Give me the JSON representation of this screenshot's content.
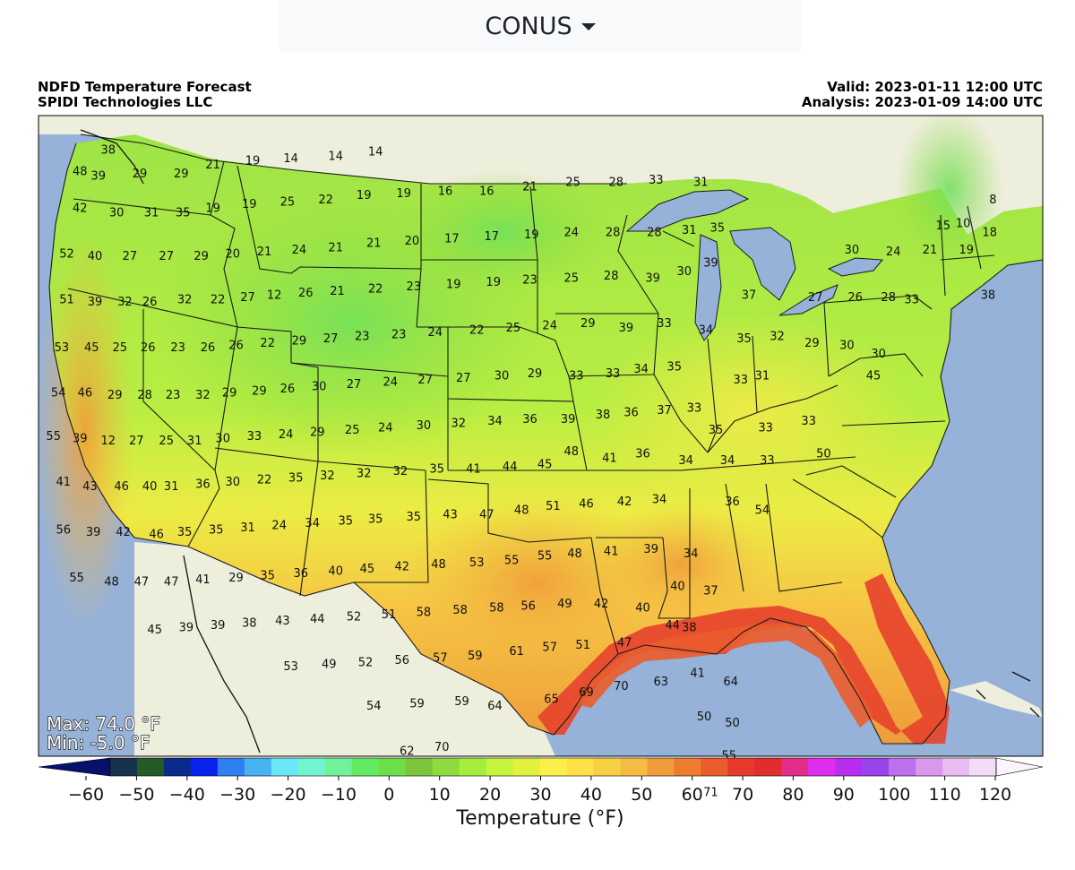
{
  "region_selector": {
    "label": "CONUS"
  },
  "header": {
    "title": "NDFD Temperature Forecast",
    "subtitle": "SPIDI Technologies LLC",
    "valid": "Valid: 2023-01-11 12:00 UTC",
    "analysis": "Analysis: 2023-01-09 14:00 UTC"
  },
  "stats": {
    "max": "Max: 74.0 °F",
    "min": "Min: -5.0 °F"
  },
  "colorbar": {
    "title": "Temperature (°F)",
    "ticks": [
      "−60",
      "−50",
      "−40",
      "−30",
      "−20",
      "−10",
      "0",
      "10",
      "20",
      "30",
      "40",
      "50",
      "60",
      "70",
      "80",
      "90",
      "100",
      "110",
      "120"
    ],
    "colors": [
      "#08106a",
      "#17324f",
      "#235a25",
      "#0c2a8c",
      "#0a22ee",
      "#2e7ff0",
      "#48b2f2",
      "#6ae7f5",
      "#72f5cf",
      "#72f09a",
      "#62ea62",
      "#6cde4a",
      "#7cc43c",
      "#8fda3e",
      "#a6ee3e",
      "#c4f43e",
      "#e0f23e",
      "#fbf04a",
      "#fce248",
      "#f8d044",
      "#f4bc42",
      "#f09c3a",
      "#ec7c30",
      "#ea5c2c",
      "#e63a2a",
      "#e22c2e",
      "#e02e8a",
      "#de2ef0",
      "#b82ef0",
      "#9a44ec",
      "#bc70ec",
      "#d898ec",
      "#e8bcf0",
      "#f4dcf6",
      "#fbf5fb"
    ]
  },
  "map_colors": {
    "ocean": "#97b2d8",
    "land": "#eeeedc",
    "lake": "#97b2d8"
  },
  "temperatures": [
    {
      "v": "38",
      "lon": -122.3,
      "lat": 48.9
    },
    {
      "v": "48",
      "lon": -124.0,
      "lat": 47.9
    },
    {
      "v": "39",
      "lon": -122.9,
      "lat": 47.7
    },
    {
      "v": "29",
      "lon": -120.4,
      "lat": 47.8
    },
    {
      "v": "29",
      "lon": -117.9,
      "lat": 47.8
    },
    {
      "v": "21",
      "lon": -116.0,
      "lat": 48.2
    },
    {
      "v": "19",
      "lon": -113.6,
      "lat": 48.4
    },
    {
      "v": "14",
      "lon": -111.3,
      "lat": 48.5
    },
    {
      "v": "14",
      "lon": -108.6,
      "lat": 48.6
    },
    {
      "v": "14",
      "lon": -106.2,
      "lat": 48.8
    },
    {
      "v": "42",
      "lon": -124.0,
      "lat": 46.2
    },
    {
      "v": "30",
      "lon": -121.8,
      "lat": 46.0
    },
    {
      "v": "31",
      "lon": -119.7,
      "lat": 46.0
    },
    {
      "v": "35",
      "lon": -117.8,
      "lat": 46.0
    },
    {
      "v": "19",
      "lon": -116.0,
      "lat": 46.2
    },
    {
      "v": "19",
      "lon": -113.8,
      "lat": 46.4
    },
    {
      "v": "25",
      "lon": -111.5,
      "lat": 46.5
    },
    {
      "v": "22",
      "lon": -109.2,
      "lat": 46.6
    },
    {
      "v": "19",
      "lon": -106.9,
      "lat": 46.8
    },
    {
      "v": "19",
      "lon": -104.5,
      "lat": 46.9
    },
    {
      "v": "16",
      "lon": -102.0,
      "lat": 47.0
    },
    {
      "v": "16",
      "lon": -99.5,
      "lat": 47.0
    },
    {
      "v": "21",
      "lon": -96.9,
      "lat": 47.2
    },
    {
      "v": "25",
      "lon": -94.3,
      "lat": 47.4
    },
    {
      "v": "28",
      "lon": -91.7,
      "lat": 47.4
    },
    {
      "v": "33",
      "lon": -89.3,
      "lat": 47.5
    },
    {
      "v": "31",
      "lon": -86.6,
      "lat": 47.4
    },
    {
      "v": "52",
      "lon": -124.8,
      "lat": 44.1
    },
    {
      "v": "40",
      "lon": -123.1,
      "lat": 44.0
    },
    {
      "v": "27",
      "lon": -121.0,
      "lat": 44.0
    },
    {
      "v": "27",
      "lon": -118.8,
      "lat": 44.0
    },
    {
      "v": "29",
      "lon": -116.7,
      "lat": 44.0
    },
    {
      "v": "20",
      "lon": -114.8,
      "lat": 44.1
    },
    {
      "v": "21",
      "lon": -112.9,
      "lat": 44.2
    },
    {
      "v": "24",
      "lon": -110.8,
      "lat": 44.3
    },
    {
      "v": "21",
      "lon": -108.6,
      "lat": 44.4
    },
    {
      "v": "21",
      "lon": -106.3,
      "lat": 44.6
    },
    {
      "v": "20",
      "lon": -104.0,
      "lat": 44.7
    },
    {
      "v": "17",
      "lon": -101.6,
      "lat": 44.8
    },
    {
      "v": "17",
      "lon": -99.2,
      "lat": 44.9
    },
    {
      "v": "19",
      "lon": -96.8,
      "lat": 45.0
    },
    {
      "v": "24",
      "lon": -94.4,
      "lat": 45.1
    },
    {
      "v": "28",
      "lon": -91.9,
      "lat": 45.1
    },
    {
      "v": "28",
      "lon": -89.4,
      "lat": 45.1
    },
    {
      "v": "31",
      "lon": -87.3,
      "lat": 45.2
    },
    {
      "v": "35",
      "lon": -85.6,
      "lat": 45.3
    },
    {
      "v": "30",
      "lon": -77.5,
      "lat": 44.3
    },
    {
      "v": "24",
      "lon": -75.0,
      "lat": 44.2
    },
    {
      "v": "21",
      "lon": -72.8,
      "lat": 44.3
    },
    {
      "v": "10",
      "lon": -70.8,
      "lat": 45.5
    },
    {
      "v": "15",
      "lon": -72.0,
      "lat": 45.4
    },
    {
      "v": "8",
      "lon": -69.0,
      "lat": 46.6
    },
    {
      "v": "19",
      "lon": -70.6,
      "lat": 44.3
    },
    {
      "v": "18",
      "lon": -69.2,
      "lat": 45.1
    },
    {
      "v": "38",
      "lon": -69.3,
      "lat": 42.2
    },
    {
      "v": "51",
      "lon": -124.8,
      "lat": 42.0
    },
    {
      "v": "39",
      "lon": -123.1,
      "lat": 41.9
    },
    {
      "v": "32",
      "lon": -121.3,
      "lat": 41.9
    },
    {
      "v": "26",
      "lon": -119.8,
      "lat": 41.9
    },
    {
      "v": "32",
      "lon": -117.7,
      "lat": 42.0
    },
    {
      "v": "22",
      "lon": -115.7,
      "lat": 42.0
    },
    {
      "v": "27",
      "lon": -113.9,
      "lat": 42.1
    },
    {
      "v": "12",
      "lon": -112.3,
      "lat": 42.2
    },
    {
      "v": "26",
      "lon": -110.4,
      "lat": 42.3
    },
    {
      "v": "21",
      "lon": -108.5,
      "lat": 42.4
    },
    {
      "v": "22",
      "lon": -106.2,
      "lat": 42.5
    },
    {
      "v": "23",
      "lon": -103.9,
      "lat": 42.6
    },
    {
      "v": "19",
      "lon": -101.5,
      "lat": 42.7
    },
    {
      "v": "19",
      "lon": -99.1,
      "lat": 42.8
    },
    {
      "v": "23",
      "lon": -96.9,
      "lat": 42.9
    },
    {
      "v": "25",
      "lon": -94.4,
      "lat": 43.0
    },
    {
      "v": "28",
      "lon": -92.0,
      "lat": 43.1
    },
    {
      "v": "39",
      "lon": -89.5,
      "lat": 43.0
    },
    {
      "v": "30",
      "lon": -87.6,
      "lat": 43.3
    },
    {
      "v": "39",
      "lon": -86.0,
      "lat": 43.7
    },
    {
      "v": "37",
      "lon": -83.7,
      "lat": 42.2
    },
    {
      "v": "27",
      "lon": -79.7,
      "lat": 42.1
    },
    {
      "v": "26",
      "lon": -77.3,
      "lat": 42.1
    },
    {
      "v": "28",
      "lon": -75.3,
      "lat": 42.1
    },
    {
      "v": "33",
      "lon": -73.9,
      "lat": 42.0
    },
    {
      "v": "53",
      "lon": -125.1,
      "lat": 39.8
    },
    {
      "v": "45",
      "lon": -123.3,
      "lat": 39.8
    },
    {
      "v": "25",
      "lon": -121.6,
      "lat": 39.8
    },
    {
      "v": "26",
      "lon": -119.9,
      "lat": 39.8
    },
    {
      "v": "23",
      "lon": -118.1,
      "lat": 39.8
    },
    {
      "v": "26",
      "lon": -116.3,
      "lat": 39.8
    },
    {
      "v": "26",
      "lon": -114.6,
      "lat": 39.9
    },
    {
      "v": "22",
      "lon": -112.7,
      "lat": 40.0
    },
    {
      "v": "29",
      "lon": -110.8,
      "lat": 40.1
    },
    {
      "v": "27",
      "lon": -108.9,
      "lat": 40.2
    },
    {
      "v": "23",
      "lon": -107.0,
      "lat": 40.3
    },
    {
      "v": "23",
      "lon": -104.8,
      "lat": 40.4
    },
    {
      "v": "24",
      "lon": -102.6,
      "lat": 40.5
    },
    {
      "v": "22",
      "lon": -100.1,
      "lat": 40.6
    },
    {
      "v": "25",
      "lon": -97.9,
      "lat": 40.7
    },
    {
      "v": "24",
      "lon": -95.7,
      "lat": 40.8
    },
    {
      "v": "29",
      "lon": -93.4,
      "lat": 40.9
    },
    {
      "v": "39",
      "lon": -91.1,
      "lat": 40.7
    },
    {
      "v": "33",
      "lon": -88.8,
      "lat": 40.9
    },
    {
      "v": "34",
      "lon": -86.3,
      "lat": 40.6
    },
    {
      "v": "35",
      "lon": -84.0,
      "lat": 40.2
    },
    {
      "v": "32",
      "lon": -82.0,
      "lat": 40.3
    },
    {
      "v": "29",
      "lon": -79.9,
      "lat": 40.0
    },
    {
      "v": "30",
      "lon": -77.8,
      "lat": 39.9
    },
    {
      "v": "30",
      "lon": -75.9,
      "lat": 39.5
    },
    {
      "v": "54",
      "lon": -125.3,
      "lat": 37.7
    },
    {
      "v": "46",
      "lon": -123.7,
      "lat": 37.7
    },
    {
      "v": "29",
      "lon": -121.9,
      "lat": 37.6
    },
    {
      "v": "28",
      "lon": -120.1,
      "lat": 37.6
    },
    {
      "v": "23",
      "lon": -118.4,
      "lat": 37.6
    },
    {
      "v": "32",
      "lon": -116.6,
      "lat": 37.6
    },
    {
      "v": "29",
      "lon": -115.0,
      "lat": 37.7
    },
    {
      "v": "29",
      "lon": -113.2,
      "lat": 37.8
    },
    {
      "v": "26",
      "lon": -111.5,
      "lat": 37.9
    },
    {
      "v": "30",
      "lon": -109.6,
      "lat": 38.0
    },
    {
      "v": "27",
      "lon": -107.5,
      "lat": 38.1
    },
    {
      "v": "24",
      "lon": -105.3,
      "lat": 38.2
    },
    {
      "v": "27",
      "lon": -103.2,
      "lat": 38.3
    },
    {
      "v": "27",
      "lon": -100.9,
      "lat": 38.4
    },
    {
      "v": "30",
      "lon": -98.6,
      "lat": 38.5
    },
    {
      "v": "29",
      "lon": -96.6,
      "lat": 38.6
    },
    {
      "v": "33",
      "lon": -94.1,
      "lat": 38.5
    },
    {
      "v": "33",
      "lon": -91.9,
      "lat": 38.6
    },
    {
      "v": "34",
      "lon": -90.2,
      "lat": 38.8
    },
    {
      "v": "35",
      "lon": -88.2,
      "lat": 38.9
    },
    {
      "v": "33",
      "lon": -84.2,
      "lat": 38.3
    },
    {
      "v": "31",
      "lon": -82.9,
      "lat": 38.5
    },
    {
      "v": "45",
      "lon": -76.2,
      "lat": 38.5
    },
    {
      "v": "55",
      "lon": -125.6,
      "lat": 35.7
    },
    {
      "v": "39",
      "lon": -124.0,
      "lat": 35.6
    },
    {
      "v": "12",
      "lon": -122.3,
      "lat": 35.5
    },
    {
      "v": "27",
      "lon": -120.6,
      "lat": 35.5
    },
    {
      "v": "25",
      "lon": -118.8,
      "lat": 35.5
    },
    {
      "v": "31",
      "lon": -117.1,
      "lat": 35.5
    },
    {
      "v": "30",
      "lon": -115.4,
      "lat": 35.6
    },
    {
      "v": "33",
      "lon": -113.5,
      "lat": 35.7
    },
    {
      "v": "24",
      "lon": -111.6,
      "lat": 35.8
    },
    {
      "v": "29",
      "lon": -109.7,
      "lat": 35.9
    },
    {
      "v": "25",
      "lon": -107.6,
      "lat": 36.0
    },
    {
      "v": "24",
      "lon": -105.6,
      "lat": 36.1
    },
    {
      "v": "30",
      "lon": -103.3,
      "lat": 36.2
    },
    {
      "v": "32",
      "lon": -101.2,
      "lat": 36.3
    },
    {
      "v": "34",
      "lon": -99.0,
      "lat": 36.4
    },
    {
      "v": "36",
      "lon": -96.9,
      "lat": 36.5
    },
    {
      "v": "39",
      "lon": -94.6,
      "lat": 36.5
    },
    {
      "v": "38",
      "lon": -92.5,
      "lat": 36.7
    },
    {
      "v": "36",
      "lon": -90.8,
      "lat": 36.8
    },
    {
      "v": "37",
      "lon": -88.8,
      "lat": 36.9
    },
    {
      "v": "33",
      "lon": -87.0,
      "lat": 37.0
    },
    {
      "v": "35",
      "lon": -85.7,
      "lat": 36.0
    },
    {
      "v": "33",
      "lon": -82.7,
      "lat": 36.1
    },
    {
      "v": "33",
      "lon": -80.1,
      "lat": 36.4
    },
    {
      "v": "41",
      "lon": -125.0,
      "lat": 33.6
    },
    {
      "v": "43",
      "lon": -123.4,
      "lat": 33.4
    },
    {
      "v": "46",
      "lon": -121.5,
      "lat": 33.4
    },
    {
      "v": "40",
      "lon": -119.8,
      "lat": 33.4
    },
    {
      "v": "31",
      "lon": -118.5,
      "lat": 33.4
    },
    {
      "v": "36",
      "lon": -116.6,
      "lat": 33.5
    },
    {
      "v": "30",
      "lon": -114.8,
      "lat": 33.6
    },
    {
      "v": "22",
      "lon": -112.9,
      "lat": 33.7
    },
    {
      "v": "35",
      "lon": -111.0,
      "lat": 33.8
    },
    {
      "v": "32",
      "lon": -109.1,
      "lat": 33.9
    },
    {
      "v": "32",
      "lon": -106.9,
      "lat": 34.0
    },
    {
      "v": "32",
      "lon": -104.7,
      "lat": 34.1
    },
    {
      "v": "35",
      "lon": -102.5,
      "lat": 34.2
    },
    {
      "v": "41",
      "lon": -100.3,
      "lat": 34.2
    },
    {
      "v": "44",
      "lon": -98.1,
      "lat": 34.3
    },
    {
      "v": "45",
      "lon": -96.0,
      "lat": 34.4
    },
    {
      "v": "48",
      "lon": -94.4,
      "lat": 35.0
    },
    {
      "v": "41",
      "lon": -92.1,
      "lat": 34.7
    },
    {
      "v": "36",
      "lon": -90.1,
      "lat": 34.9
    },
    {
      "v": "34",
      "lon": -87.5,
      "lat": 34.6
    },
    {
      "v": "34",
      "lon": -85.0,
      "lat": 34.6
    },
    {
      "v": "33",
      "lon": -82.6,
      "lat": 34.6
    },
    {
      "v": "50",
      "lon": -79.2,
      "lat": 34.9
    },
    {
      "v": "56",
      "lon": -125.0,
      "lat": 31.4
    },
    {
      "v": "39",
      "lon": -123.2,
      "lat": 31.3
    },
    {
      "v": "42",
      "lon": -121.4,
      "lat": 31.3
    },
    {
      "v": "46",
      "lon": -119.4,
      "lat": 31.2
    },
    {
      "v": "35",
      "lon": -117.7,
      "lat": 31.3
    },
    {
      "v": "35",
      "lon": -115.8,
      "lat": 31.4
    },
    {
      "v": "31",
      "lon": -113.9,
      "lat": 31.5
    },
    {
      "v": "24",
      "lon": -112.0,
      "lat": 31.6
    },
    {
      "v": "34",
      "lon": -110.0,
      "lat": 31.7
    },
    {
      "v": "35",
      "lon": -108.0,
      "lat": 31.8
    },
    {
      "v": "35",
      "lon": -106.2,
      "lat": 31.9
    },
    {
      "v": "35",
      "lon": -103.9,
      "lat": 32.0
    },
    {
      "v": "43",
      "lon": -101.7,
      "lat": 32.1
    },
    {
      "v": "47",
      "lon": -99.5,
      "lat": 32.1
    },
    {
      "v": "48",
      "lon": -97.4,
      "lat": 32.3
    },
    {
      "v": "51",
      "lon": -95.5,
      "lat": 32.5
    },
    {
      "v": "46",
      "lon": -93.5,
      "lat": 32.6
    },
    {
      "v": "42",
      "lon": -91.2,
      "lat": 32.7
    },
    {
      "v": "34",
      "lon": -89.1,
      "lat": 32.8
    },
    {
      "v": "36",
      "lon": -84.7,
      "lat": 32.7
    },
    {
      "v": "54",
      "lon": -82.9,
      "lat": 32.3
    },
    {
      "v": "55",
      "lon": -124.2,
      "lat": 29.2
    },
    {
      "v": "48",
      "lon": -122.1,
      "lat": 29.0
    },
    {
      "v": "47",
      "lon": -120.3,
      "lat": 29.0
    },
    {
      "v": "47",
      "lon": -118.5,
      "lat": 29.0
    },
    {
      "v": "41",
      "lon": -116.6,
      "lat": 29.1
    },
    {
      "v": "29",
      "lon": -114.6,
      "lat": 29.2
    },
    {
      "v": "35",
      "lon": -112.7,
      "lat": 29.3
    },
    {
      "v": "36",
      "lon": -110.7,
      "lat": 29.4
    },
    {
      "v": "40",
      "lon": -108.6,
      "lat": 29.5
    },
    {
      "v": "45",
      "lon": -106.7,
      "lat": 29.6
    },
    {
      "v": "42",
      "lon": -104.6,
      "lat": 29.7
    },
    {
      "v": "48",
      "lon": -102.4,
      "lat": 29.8
    },
    {
      "v": "53",
      "lon": -100.1,
      "lat": 29.9
    },
    {
      "v": "55",
      "lon": -98.0,
      "lat": 30.0
    },
    {
      "v": "55",
      "lon": -96.0,
      "lat": 30.2
    },
    {
      "v": "48",
      "lon": -94.2,
      "lat": 30.3
    },
    {
      "v": "41",
      "lon": -92.0,
      "lat": 30.4
    },
    {
      "v": "39",
      "lon": -89.6,
      "lat": 30.5
    },
    {
      "v": "34",
      "lon": -87.2,
      "lat": 30.3
    },
    {
      "v": "40",
      "lon": -88.0,
      "lat": 28.8
    },
    {
      "v": "37",
      "lon": -86.0,
      "lat": 28.6
    },
    {
      "v": "45",
      "lon": -119.5,
      "lat": 26.8
    },
    {
      "v": "39",
      "lon": -117.6,
      "lat": 26.9
    },
    {
      "v": "39",
      "lon": -115.7,
      "lat": 27.0
    },
    {
      "v": "38",
      "lon": -113.8,
      "lat": 27.1
    },
    {
      "v": "43",
      "lon": -111.8,
      "lat": 27.2
    },
    {
      "v": "44",
      "lon": -109.7,
      "lat": 27.3
    },
    {
      "v": "52",
      "lon": -107.5,
      "lat": 27.4
    },
    {
      "v": "51",
      "lon": -105.4,
      "lat": 27.5
    },
    {
      "v": "58",
      "lon": -103.3,
      "lat": 27.6
    },
    {
      "v": "58",
      "lon": -101.1,
      "lat": 27.7
    },
    {
      "v": "58",
      "lon": -98.9,
      "lat": 27.8
    },
    {
      "v": "56",
      "lon": -97.0,
      "lat": 27.9
    },
    {
      "v": "49",
      "lon": -94.8,
      "lat": 28.0
    },
    {
      "v": "42",
      "lon": -92.6,
      "lat": 28.0
    },
    {
      "v": "40",
      "lon": -90.1,
      "lat": 27.8
    },
    {
      "v": "38",
      "lon": -87.3,
      "lat": 26.9
    },
    {
      "v": "44",
      "lon": -88.3,
      "lat": 27.0
    },
    {
      "v": "47",
      "lon": -91.2,
      "lat": 26.2
    },
    {
      "v": "51",
      "lon": -93.7,
      "lat": 26.1
    },
    {
      "v": "57",
      "lon": -95.7,
      "lat": 26.0
    },
    {
      "v": "61",
      "lon": -97.7,
      "lat": 25.8
    },
    {
      "v": "59",
      "lon": -100.2,
      "lat": 25.6
    },
    {
      "v": "57",
      "lon": -102.3,
      "lat": 25.5
    },
    {
      "v": "56",
      "lon": -104.6,
      "lat": 25.4
    },
    {
      "v": "52",
      "lon": -106.8,
      "lat": 25.3
    },
    {
      "v": "49",
      "lon": -109.0,
      "lat": 25.2
    },
    {
      "v": "53",
      "lon": -111.3,
      "lat": 25.1
    },
    {
      "v": "41",
      "lon": -86.8,
      "lat": 24.8
    },
    {
      "v": "63",
      "lon": -89.0,
      "lat": 24.4
    },
    {
      "v": "70",
      "lon": -91.4,
      "lat": 24.2
    },
    {
      "v": "69",
      "lon": -93.5,
      "lat": 23.9
    },
    {
      "v": "65",
      "lon": -95.6,
      "lat": 23.6
    },
    {
      "v": "64",
      "lon": -99.0,
      "lat": 23.3
    },
    {
      "v": "59",
      "lon": -101.0,
      "lat": 23.5
    },
    {
      "v": "59",
      "lon": -103.7,
      "lat": 23.4
    },
    {
      "v": "54",
      "lon": -106.3,
      "lat": 23.3
    },
    {
      "v": "64",
      "lon": -84.8,
      "lat": 24.4
    },
    {
      "v": "50",
      "lon": -86.4,
      "lat": 22.8
    },
    {
      "v": "50",
      "lon": -84.7,
      "lat": 22.5
    },
    {
      "v": "70",
      "lon": -102.2,
      "lat": 21.4
    },
    {
      "v": "62",
      "lon": -104.3,
      "lat": 21.2
    },
    {
      "v": "55",
      "lon": -84.9,
      "lat": 21.0
    },
    {
      "v": "71",
      "lon": -86.0,
      "lat": 19.3
    }
  ]
}
